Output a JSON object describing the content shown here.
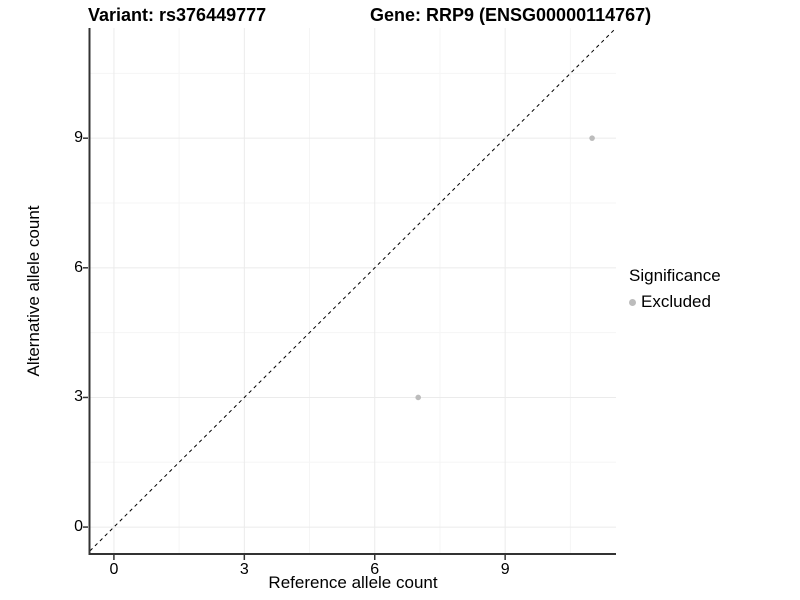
{
  "figure": {
    "title_left": "Variant: rs376449777",
    "title_right": "Gene: RRP9 (ENSG00000114767)"
  },
  "chart_data": {
    "type": "scatter",
    "title": "Variant: rs376449777 | Gene: RRP9 (ENSG00000114767)",
    "xlabel": "Reference allele count",
    "ylabel": "Alternative allele count",
    "xlim": [
      -0.55,
      11.55
    ],
    "ylim": [
      -0.6,
      11.55
    ],
    "x_ticks": [
      0,
      3,
      6,
      9
    ],
    "y_ticks": [
      0,
      3,
      6,
      9
    ],
    "x_minor_ticks": [
      1.5,
      4.5,
      7.5,
      10.5
    ],
    "y_minor_ticks": [
      1.5,
      4.5,
      7.5,
      10.5
    ],
    "grid": {
      "major_color": "#ebebeb",
      "minor_color": "#f5f5f5",
      "on": true
    },
    "axis_color": "#333333",
    "identity_line": {
      "slope": 1,
      "intercept": 0,
      "style": "dashed",
      "color": "#000000"
    },
    "series": [
      {
        "name": "Excluded",
        "color": "#bcbcbc",
        "points": [
          {
            "x": 7,
            "y": 3
          },
          {
            "x": 11,
            "y": 9
          }
        ]
      }
    ],
    "legend": {
      "position": "right",
      "title": "Significance",
      "items": [
        {
          "label": "Excluded",
          "color": "#bcbcbc"
        }
      ]
    }
  }
}
